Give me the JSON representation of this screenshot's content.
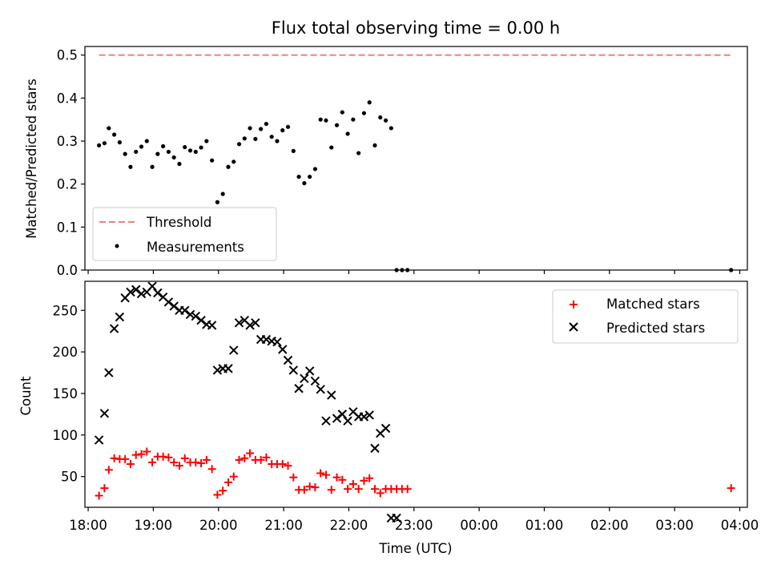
{
  "chart_data": [
    {
      "type": "scatter",
      "title": "Flux total observing time = 0.00 h",
      "ylabel": "Matched/Predicted stars",
      "xlabel": "",
      "ylim": [
        0,
        0.52
      ],
      "yticks": [
        "0.0",
        "0.1",
        "0.2",
        "0.3",
        "0.4",
        "0.5"
      ],
      "legend_position": "lower-left",
      "threshold": {
        "name": "Threshold",
        "value": 0.5,
        "x_range": [
          "18:10",
          "03:52"
        ],
        "color": "#f08080",
        "style": "dashed"
      },
      "series": [
        {
          "name": "Measurements",
          "color": "#000000",
          "marker": "dot",
          "x": [
            "18:10",
            "18:15",
            "18:19",
            "18:24",
            "18:29",
            "18:34",
            "18:39",
            "18:44",
            "18:49",
            "18:54",
            "18:59",
            "19:04",
            "19:09",
            "19:14",
            "19:19",
            "19:24",
            "19:29",
            "19:34",
            "19:39",
            "19:44",
            "19:49",
            "19:54",
            "19:59",
            "20:04",
            "20:09",
            "20:14",
            "20:19",
            "20:24",
            "20:29",
            "20:34",
            "20:39",
            "20:44",
            "20:49",
            "20:54",
            "20:59",
            "21:04",
            "21:09",
            "21:14",
            "21:19",
            "21:24",
            "21:29",
            "21:34",
            "21:39",
            "21:44",
            "21:49",
            "21:54",
            "21:59",
            "22:04",
            "22:09",
            "22:14",
            "22:19",
            "22:24",
            "22:29",
            "22:34",
            "22:39",
            "22:44",
            "22:49",
            "22:54",
            "03:52"
          ],
          "values": [
            0.29,
            0.295,
            0.33,
            0.315,
            0.297,
            0.27,
            0.24,
            0.275,
            0.287,
            0.3,
            0.24,
            0.27,
            0.288,
            0.275,
            0.262,
            0.247,
            0.286,
            0.278,
            0.275,
            0.285,
            0.3,
            0.255,
            0.158,
            0.177,
            0.24,
            0.252,
            0.293,
            0.306,
            0.33,
            0.305,
            0.328,
            0.34,
            0.31,
            0.3,
            0.325,
            0.333,
            0.277,
            0.217,
            0.202,
            0.217,
            0.235,
            0.35,
            0.348,
            0.285,
            0.337,
            0.367,
            0.317,
            0.35,
            0.272,
            0.365,
            0.39,
            0.29,
            0.355,
            0.348,
            0.33,
            0.0,
            0.0,
            0.0,
            0.0
          ]
        }
      ]
    },
    {
      "type": "scatter",
      "title": "",
      "xlabel": "Time (UTC)",
      "ylabel": "Count",
      "ylim": [
        13,
        285
      ],
      "yticks": [
        "50",
        "100",
        "150",
        "200",
        "250"
      ],
      "xlim": [
        "17:57",
        "04:07"
      ],
      "xticks": [
        "18:00",
        "19:00",
        "20:00",
        "21:00",
        "22:00",
        "23:00",
        "00:00",
        "01:00",
        "02:00",
        "03:00",
        "04:00"
      ],
      "legend_position": "top-right",
      "series": [
        {
          "name": "Matched stars",
          "color": "#ff0000",
          "marker": "plus",
          "x": [
            "18:10",
            "18:15",
            "18:19",
            "18:24",
            "18:29",
            "18:34",
            "18:39",
            "18:44",
            "18:49",
            "18:54",
            "18:59",
            "19:04",
            "19:09",
            "19:14",
            "19:19",
            "19:24",
            "19:29",
            "19:34",
            "19:39",
            "19:44",
            "19:49",
            "19:54",
            "19:59",
            "20:04",
            "20:09",
            "20:14",
            "20:19",
            "20:24",
            "20:29",
            "20:34",
            "20:39",
            "20:44",
            "20:49",
            "20:54",
            "20:59",
            "21:04",
            "21:09",
            "21:14",
            "21:19",
            "21:24",
            "21:29",
            "21:34",
            "21:39",
            "21:44",
            "21:49",
            "21:54",
            "21:59",
            "22:04",
            "22:09",
            "22:14",
            "22:19",
            "22:24",
            "22:29",
            "22:34",
            "22:39",
            "22:44",
            "22:49",
            "22:54",
            "03:52"
          ],
          "values": [
            27,
            36,
            58,
            72,
            71,
            71,
            65,
            76,
            77,
            80,
            67,
            74,
            74,
            73,
            67,
            63,
            72,
            67,
            67,
            66,
            70,
            59,
            28,
            33,
            43,
            50,
            70,
            72,
            78,
            70,
            70,
            73,
            65,
            65,
            65,
            63,
            49,
            34,
            34,
            38,
            37,
            54,
            52,
            34,
            49,
            46,
            35,
            41,
            35,
            45,
            48,
            35,
            30,
            35,
            35,
            35,
            35,
            35,
            36
          ]
        },
        {
          "name": "Predicted stars",
          "color": "#000000",
          "marker": "x",
          "x": [
            "18:10",
            "18:15",
            "18:19",
            "18:24",
            "18:29",
            "18:34",
            "18:39",
            "18:44",
            "18:49",
            "18:54",
            "18:59",
            "19:04",
            "19:09",
            "19:14",
            "19:19",
            "19:24",
            "19:29",
            "19:34",
            "19:39",
            "19:44",
            "19:49",
            "19:54",
            "19:59",
            "20:04",
            "20:09",
            "20:14",
            "20:19",
            "20:24",
            "20:29",
            "20:34",
            "20:39",
            "20:44",
            "20:49",
            "20:54",
            "20:59",
            "21:04",
            "21:09",
            "21:14",
            "21:19",
            "21:24",
            "21:29",
            "21:34",
            "21:39",
            "21:44",
            "21:49",
            "21:54",
            "21:59",
            "22:04",
            "22:09",
            "22:14",
            "22:19",
            "22:24",
            "22:29",
            "22:34",
            "22:39",
            "22:44"
          ],
          "values": [
            94,
            126,
            175,
            228,
            242,
            265,
            272,
            275,
            270,
            272,
            279,
            271,
            266,
            260,
            255,
            250,
            250,
            245,
            243,
            238,
            233,
            232,
            178,
            180,
            180,
            202,
            235,
            238,
            232,
            235,
            215,
            215,
            213,
            212,
            203,
            190,
            178,
            156,
            168,
            177,
            165,
            155,
            117,
            148,
            120,
            125,
            117,
            128,
            122,
            122,
            124,
            84,
            102,
            108,
            0,
            0
          ]
        }
      ]
    }
  ]
}
